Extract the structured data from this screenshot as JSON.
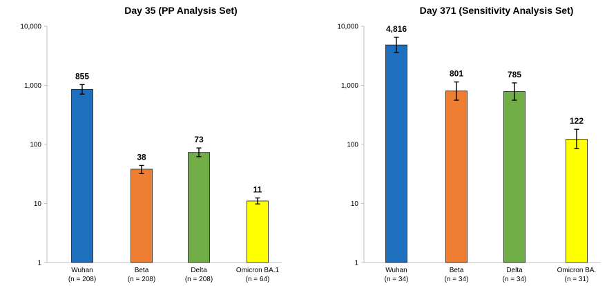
{
  "y_axis_label": "",
  "chart_data": [
    {
      "type": "bar",
      "title": "Day 35 (PP Analysis Set)",
      "y_scale": "log",
      "ylim": [
        1,
        10000
      ],
      "yticks": [
        "1",
        "10",
        "100",
        "1,000",
        "10,000"
      ],
      "categories": [
        "Wuhan",
        "Beta",
        "Delta",
        "Omicron BA.1"
      ],
      "n_labels": [
        "(n = 208)",
        "(n = 208)",
        "(n = 208)",
        "(n = 64)"
      ],
      "values": [
        855,
        38,
        73,
        11
      ],
      "value_labels": [
        "855",
        "38",
        "73",
        "11"
      ],
      "error_low": [
        710,
        32,
        62,
        9.8
      ],
      "error_high": [
        1030,
        44,
        87,
        12.4
      ],
      "colors": [
        "#1f6fbf",
        "#ed7d31",
        "#70ad47",
        "#ffff00"
      ]
    },
    {
      "type": "bar",
      "title": "Day 371 (Sensitivity  Analysis Set)",
      "y_scale": "log",
      "ylim": [
        1,
        10000
      ],
      "yticks": [
        "1",
        "10",
        "100",
        "1,000",
        "10,000"
      ],
      "categories": [
        "Wuhan",
        "Beta",
        "Delta",
        "Omicron BA."
      ],
      "n_labels": [
        "(n = 34)",
        "(n = 34)",
        "(n = 34)",
        "(n = 31)"
      ],
      "values": [
        4816,
        801,
        785,
        122
      ],
      "value_labels": [
        "4,816",
        "801",
        "785",
        "122"
      ],
      "error_low": [
        3600,
        560,
        560,
        85
      ],
      "error_high": [
        6500,
        1140,
        1100,
        180
      ],
      "colors": [
        "#1f6fbf",
        "#ed7d31",
        "#70ad47",
        "#ffff00"
      ]
    }
  ]
}
